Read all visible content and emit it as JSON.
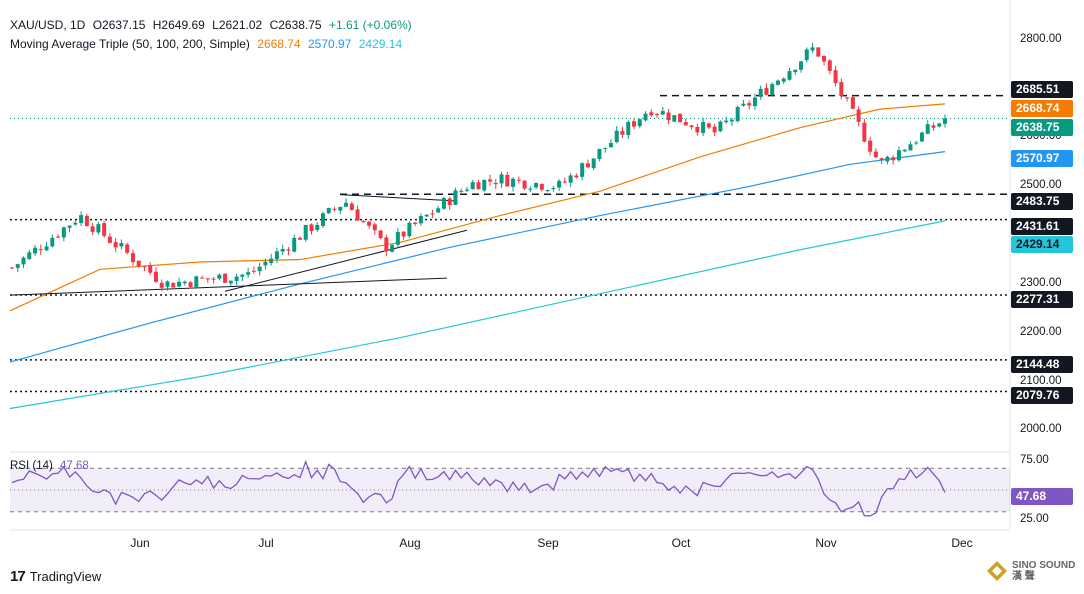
{
  "header": {
    "symbol": "XAU/USD, 1D",
    "open": "O2637.15",
    "high": "H2649.69",
    "low": "L2621.02",
    "close": "C2638.75",
    "change": "+1.61 (+0.06%)",
    "ma_label": "Moving Average Triple (50, 100, 200, Simple)",
    "ma50": "2668.74",
    "ma100": "2570.97",
    "ma200": "2429.14",
    "rsi_label": "RSI (14)",
    "rsi_value": "47.68"
  },
  "colors": {
    "up": "#089981",
    "down": "#f23645",
    "ma50": "#f57c00",
    "ma100": "#2196f3",
    "ma200": "#26c6da",
    "rsi": "#7e57c2",
    "last_price": "#089981"
  },
  "price_axis": {
    "ticks": [
      "2800.00",
      "2600.00",
      "2500.00",
      "2300.00",
      "2200.00",
      "2100.00",
      "2000.00"
    ]
  },
  "price_labels": [
    {
      "value": "2685.51",
      "style": "dark"
    },
    {
      "value": "2668.74",
      "style": "ma50"
    },
    {
      "value": "2638.75",
      "style": "last"
    },
    {
      "value": "2570.97",
      "style": "ma100"
    },
    {
      "value": "2483.75",
      "style": "dark"
    },
    {
      "value": "2431.61",
      "style": "dark"
    },
    {
      "value": "2429.14",
      "style": "ma200"
    },
    {
      "value": "2277.31",
      "style": "dark"
    },
    {
      "value": "2144.48",
      "style": "dark"
    },
    {
      "value": "2079.76",
      "style": "dark"
    }
  ],
  "rsi_axis": {
    "ticks": [
      "75.00",
      "25.00"
    ],
    "value_label": "47.68"
  },
  "time_axis": {
    "labels": [
      "Jun",
      "Jul",
      "Aug",
      "Sep",
      "Oct",
      "Nov",
      "Dec"
    ]
  },
  "branding": {
    "tradingview": "TradingView",
    "watermark_top": "SINO SOUND",
    "watermark_bottom": "漢 聲"
  },
  "chart_data": {
    "type": "candlestick",
    "title": "XAU/USD, 1D",
    "ylim": [
      1960,
      2820
    ],
    "rsi_ylim": [
      15,
      85
    ],
    "horizontal_levels": [
      {
        "value": 2685.51,
        "style": "dashed"
      },
      {
        "value": 2483.75,
        "style": "dashed"
      },
      {
        "value": 2431.61,
        "style": "dotted"
      },
      {
        "value": 2277.31,
        "style": "dotted"
      },
      {
        "value": 2144.48,
        "style": "dotted"
      },
      {
        "value": 2079.76,
        "style": "dotted"
      }
    ],
    "rsi_levels": [
      70,
      50,
      30
    ],
    "anchors": [
      {
        "month": "May",
        "close": 2345
      },
      {
        "month": "Jun",
        "close": 2325
      },
      {
        "month": "Jul",
        "close": 2330
      },
      {
        "month": "Jul",
        "close": 2470
      },
      {
        "month": "Aug",
        "close": 2380
      },
      {
        "month": "Aug",
        "close": 2510
      },
      {
        "month": "Sep",
        "close": 2500
      },
      {
        "month": "Sep",
        "close": 2670
      },
      {
        "month": "Oct",
        "close": 2610
      },
      {
        "month": "Oct",
        "close": 2780
      },
      {
        "month": "Nov",
        "close": 2540
      },
      {
        "month": "Nov",
        "close": 2700
      },
      {
        "month": "Nov",
        "close": 2638.75
      }
    ],
    "series": [
      {
        "name": "SMA 50",
        "start": 2245,
        "end": 2668.74
      },
      {
        "name": "SMA 100",
        "start": 2140,
        "end": 2570.97
      },
      {
        "name": "SMA 200",
        "start": 2045,
        "end": 2429.14
      },
      {
        "name": "RSI (14)",
        "end": 47.68
      }
    ]
  }
}
